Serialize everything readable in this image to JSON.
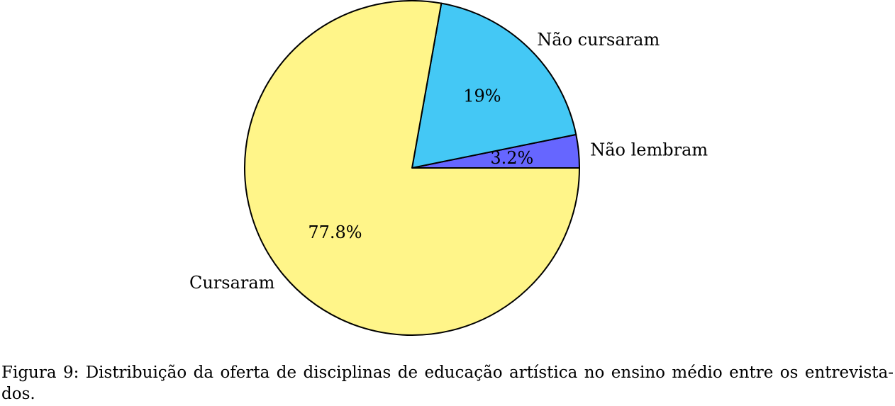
{
  "chart_data": {
    "type": "pie",
    "slices": [
      {
        "label": "Não lembram",
        "value": 3.2,
        "value_label": "3.2%",
        "color": "#6666ff"
      },
      {
        "label": "Não cursaram",
        "value": 19,
        "value_label": "19%",
        "color": "#44c8f5"
      },
      {
        "label": "Cursaram",
        "value": 77.8,
        "value_label": "77.8%",
        "color": "#fff589"
      }
    ],
    "start_angle_deg": 0,
    "direction": "counterclockwise",
    "edge_color": "#000000"
  },
  "caption": {
    "prefix": "Figura 9:",
    "line1": "Distribuição da oferta de disciplinas de educação artística no ensino médio entre os entrevista-",
    "line2": "dos."
  }
}
